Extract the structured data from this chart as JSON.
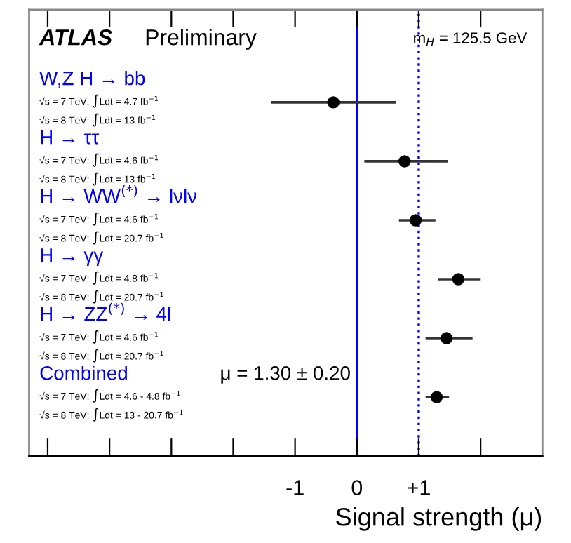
{
  "chart_data": {
    "type": "scatter",
    "orientation": "horizontal",
    "xlabel": "Signal strength (μ)",
    "categories": [
      "W,Z H → bb",
      "H → ττ",
      "H → WW$^{(*)}$ → lνlν",
      "H → γγ",
      "H → ZZ$^{(*)}$ → 4l",
      "Combined"
    ],
    "values": [
      -0.38,
      0.77,
      0.95,
      1.64,
      1.45,
      1.29
    ],
    "errors": [
      [
        -1.39,
        0.63
      ],
      [
        0.12,
        1.47
      ],
      [
        0.68,
        1.27
      ],
      [
        1.31,
        1.99
      ],
      [
        1.11,
        1.87
      ],
      [
        1.11,
        1.49
      ]
    ],
    "colors": [
      "#000000",
      "#000000",
      "#000000",
      "#000000",
      "#000000",
      "#000000"
    ],
    "marker": "circle",
    "xlim": [
      -5.3,
      3.0
    ],
    "xticks": [
      {
        "value": -5,
        "label": null
      },
      {
        "value": -4,
        "label": null
      },
      {
        "value": -3,
        "label": null
      },
      {
        "value": -2,
        "label": null
      },
      {
        "value": -1,
        "label": "-1"
      },
      {
        "value": 0,
        "label": "0"
      },
      {
        "value": 1,
        "label": "+1"
      },
      {
        "value": 2,
        "label": null
      }
    ],
    "ref_lines": [
      {
        "axis": "x",
        "value": 0,
        "color": "#0000ff",
        "line_style": "solid"
      },
      {
        "axis": "x",
        "value": 1,
        "color": "#0000ff",
        "line_style": "dotted"
      }
    ],
    "annotations": [
      "ATLAS",
      "Preliminary",
      "m$_{H}$ = 125.5 GeV",
      "μ = 1.30 ± 0.20",
      "√s = 7 TeV: ∫Ldt = 4.7 fb$^{−1}$",
      "√s = 8 TeV: ∫Ldt = 13 fb$^{−1}$",
      "√s = 7 TeV: ∫Ldt = 4.6 fb$^{−1}$",
      "√s = 8 TeV: ∫Ldt = 13 fb$^{−1}$",
      "√s = 7 TeV: ∫Ldt = 4.6 fb$^{−1}$",
      "√s = 8 TeV: ∫Ldt = 20.7 fb$^{−1}$",
      "√s = 7 TeV: ∫Ldt = 4.8 fb$^{−1}$",
      "√s = 8 TeV: ∫Ldt = 20.7 fb$^{−1}$",
      "√s = 7 TeV: ∫Ldt = 4.6 fb$^{−1}$",
      "√s = 8 TeV: ∫Ldt = 20.7 fb$^{−1}$",
      "√s = 7 TeV: ∫Ldt = 4.6 - 4.8 fb$^{−1}$",
      "√s = 8 TeV: ∫Ldt = 13 - 20.7 fb$^{−1}$"
    ]
  }
}
